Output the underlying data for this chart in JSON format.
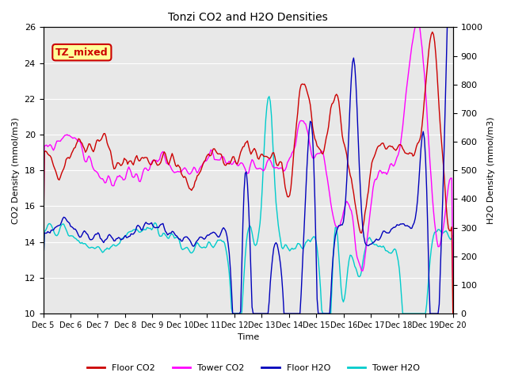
{
  "title": "Tonzi CO2 and H2O Densities",
  "xlabel": "Time",
  "ylabel_left": "CO2 Density (mmol/m3)",
  "ylabel_right": "H2O Density (mmol/m3)",
  "ylim_left": [
    10,
    26
  ],
  "ylim_right": [
    0,
    1000
  ],
  "annotation": "TZ_mixed",
  "annotation_color": "#cc0000",
  "annotation_bg": "#ffff99",
  "bg_color": "#e8e8e8",
  "colors": {
    "floor_co2": "#cc0000",
    "tower_co2": "#ff00ff",
    "floor_h2o": "#0000bb",
    "tower_h2o": "#00cccc"
  },
  "legend_labels": [
    "Floor CO2",
    "Tower CO2",
    "Floor H2O",
    "Tower H2O"
  ],
  "x_tick_labels": [
    "Dec 5",
    "Dec 6",
    "Dec 7",
    "Dec 8",
    "Dec 9",
    "Dec 10",
    "Dec 11",
    "Dec 12",
    "Dec 13",
    "Dec 14",
    "Dec 15",
    "Dec 16",
    "Dec 17",
    "Dec 18",
    "Dec 19",
    "Dec 20"
  ],
  "n_points": 360
}
